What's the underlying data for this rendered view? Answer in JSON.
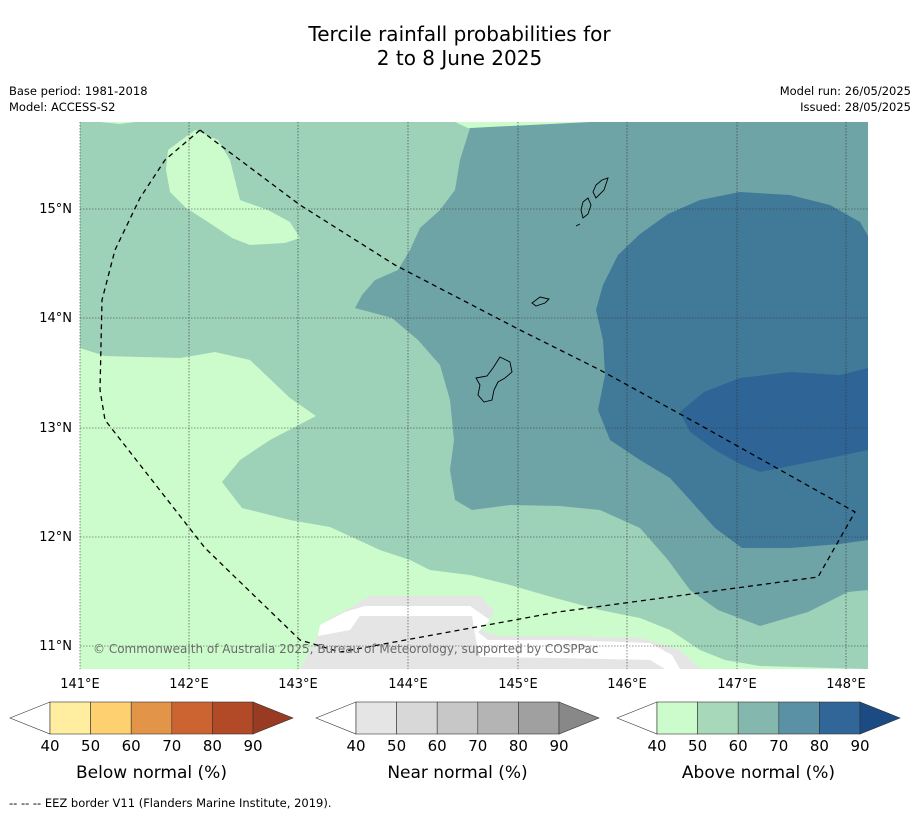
{
  "header": {
    "title_line1": "Tercile rainfall probabilities for",
    "title_line2": "2 to 8 June 2025",
    "base_period": "Base period: 1981-2018",
    "model": "Model: ACCESS-S2",
    "model_run": "Model run: 26/05/2025",
    "issued": "Issued: 28/05/2025"
  },
  "map": {
    "copyright": "© Commonwealth of Australia 2025, Bureau of Meteorology, supported by COSPPac",
    "lon_ticks": [
      "141°E",
      "142°E",
      "143°E",
      "144°E",
      "145°E",
      "146°E",
      "147°E",
      "148°E"
    ],
    "lat_ticks": [
      "15°N",
      "14°N",
      "13°N",
      "12°N",
      "11°N"
    ],
    "region_colors": {
      "above_40_50": "#ccfccc",
      "above_50_60": "#9dd1b8",
      "above_70_80": "#6ea4a6",
      "above_80_90": "#417a99",
      "above_90": "#2f6496",
      "near_40_50": "#e5e5e5",
      "blank": "#ffffff"
    }
  },
  "colorbars": [
    {
      "title": "Below normal (%)",
      "labels": [
        "40",
        "50",
        "60",
        "70",
        "80",
        "90"
      ],
      "colors": [
        "#ffffff",
        "#ffeea0",
        "#ffd070",
        "#e29549",
        "#cc6432",
        "#b24a27",
        "#993a22"
      ]
    },
    {
      "title": "Near normal (%)",
      "labels": [
        "40",
        "50",
        "60",
        "70",
        "80",
        "90"
      ],
      "colors": [
        "#ffffff",
        "#e5e5e5",
        "#d8d8d8",
        "#c7c7c7",
        "#b4b4b4",
        "#a0a0a0",
        "#888888"
      ]
    },
    {
      "title": "Above normal (%)",
      "labels": [
        "40",
        "50",
        "60",
        "70",
        "80",
        "90"
      ],
      "colors": [
        "#ffffff",
        "#ccfccc",
        "#a8d8ba",
        "#84b8ae",
        "#5b91a5",
        "#316698",
        "#1c4b84"
      ]
    }
  ],
  "footnote": "-- -- -- EEZ border V11 (Flanders Marine Institute, 2019)."
}
